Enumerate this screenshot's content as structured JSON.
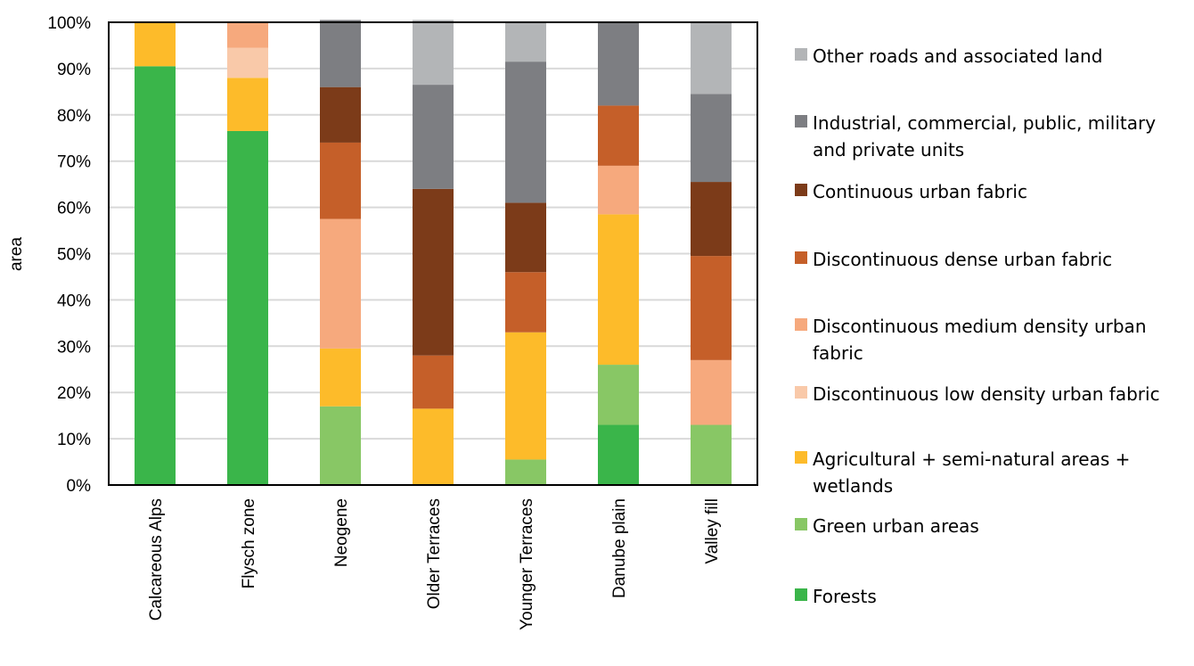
{
  "chart_data": {
    "type": "bar",
    "stacked": true,
    "percent": true,
    "title": "",
    "xlabel": "",
    "ylabel": "area",
    "ylim": [
      0,
      100
    ],
    "yticks": [
      "0%",
      "10%",
      "20%",
      "30%",
      "40%",
      "50%",
      "60%",
      "70%",
      "80%",
      "90%",
      "100%"
    ],
    "grid": true,
    "legend_position": "right",
    "categories": [
      "Calcareous Alps",
      "Flysch zone",
      "Neogene",
      "Older Terraces",
      "Younger Terraces",
      "Danube plain",
      "Valley fill"
    ],
    "series": [
      {
        "name": "Forests",
        "color": "#3ab54a",
        "values": [
          90.5,
          76.5,
          0,
          0,
          0,
          13,
          0
        ]
      },
      {
        "name": "Green urban areas",
        "color": "#88c765",
        "values": [
          0,
          0,
          17,
          0,
          5.5,
          13,
          13
        ]
      },
      {
        "name": "Agricultural + semi-natural areas + wetlands",
        "color": "#fdbb2a",
        "values": [
          9.5,
          11.5,
          12.5,
          16.5,
          27.5,
          32.5,
          0
        ]
      },
      {
        "name": "Discontinuous low density urban fabric",
        "color": "#f9c9a9",
        "values": [
          0,
          6.5,
          0,
          0,
          0,
          0,
          0
        ]
      },
      {
        "name": "Discontinuous medium density urban fabric",
        "color": "#f6a97d",
        "values": [
          0,
          5.5,
          28,
          0,
          0,
          10.5,
          14
        ]
      },
      {
        "name": "Discontinuous dense urban fabric",
        "color": "#c55f29",
        "values": [
          0,
          0,
          16.5,
          11.5,
          13,
          13,
          22.5
        ]
      },
      {
        "name": "Continuous urban fabric",
        "color": "#7c3b19",
        "values": [
          0,
          0,
          12,
          36,
          15,
          0,
          16
        ]
      },
      {
        "name": "Industrial, commercial, public, military and private units",
        "color": "#7d7e82",
        "values": [
          0,
          0,
          14.5,
          22.5,
          30.5,
          18,
          19
        ]
      },
      {
        "name": "Other roads and associated land",
        "color": "#b3b5b7",
        "values": [
          0,
          0,
          0,
          14,
          8.5,
          0,
          15.5
        ]
      }
    ]
  },
  "legend": {
    "order": [
      8,
      7,
      6,
      5,
      4,
      3,
      2,
      1,
      0
    ]
  }
}
